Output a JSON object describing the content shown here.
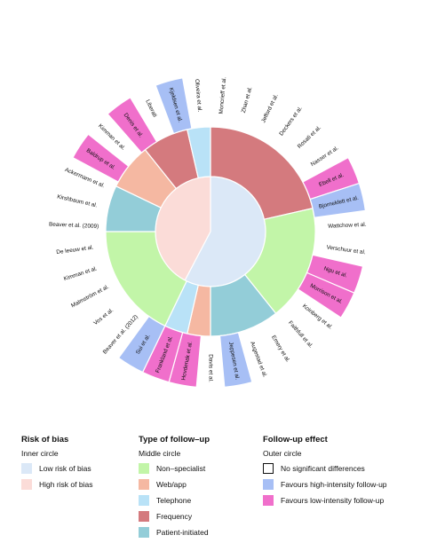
{
  "chart_data": {
    "type": "sunburst",
    "inner_ring": {
      "title": "Inner circle",
      "segments": [
        {
          "category": "low",
          "count": 15
        },
        {
          "category": "high",
          "count": 11
        }
      ]
    },
    "middle_ring": {
      "title": "Middle circle",
      "segments": [
        {
          "category": "frequency",
          "count": 6
        },
        {
          "category": "non_specialist",
          "count": 5
        },
        {
          "category": "patient_initiated",
          "count": 3
        },
        {
          "category": "web_app",
          "count": 1
        },
        {
          "category": "telephone",
          "count": 1
        },
        {
          "category": "non_specialist",
          "count": 5
        },
        {
          "category": "patient_initiated",
          "count": 2
        },
        {
          "category": "web_app",
          "count": 2
        },
        {
          "category": "frequency",
          "count": 2
        },
        {
          "category": "telephone",
          "count": 1
        }
      ]
    },
    "outer_ring": {
      "title": "Outer circle",
      "studies": [
        {
          "label": "Moncrieff et al.",
          "effect": "none"
        },
        {
          "label": "Zhan et al.",
          "effect": "none"
        },
        {
          "label": "Jefford et al.",
          "effect": "none"
        },
        {
          "label": "Deckers et al.",
          "effect": "none"
        },
        {
          "label": "Rosati et al.",
          "effect": "none"
        },
        {
          "label": "Nasser et al.",
          "effect": "none"
        },
        {
          "label": "Ebell et al.",
          "effect": "low"
        },
        {
          "label": "Bjorneklett et al.",
          "effect": "high"
        },
        {
          "label": "Wattchow et al.",
          "effect": "none"
        },
        {
          "label": "Verschuur et al.",
          "effect": "none"
        },
        {
          "label": "Ngu et al.",
          "effect": "low"
        },
        {
          "label": "Morrison et al.",
          "effect": "low"
        },
        {
          "label": "Koinberg et al.",
          "effect": "none"
        },
        {
          "label": "Faithfull et al.",
          "effect": "none"
        },
        {
          "label": "Emery et al.",
          "effect": "none"
        },
        {
          "label": "Augestad et al.",
          "effect": "none"
        },
        {
          "label": "Jeppesen et al.",
          "effect": "high"
        },
        {
          "label": "Davis et al.",
          "effect": "none"
        },
        {
          "label": "Hovdenak et al.",
          "effect": "low"
        },
        {
          "label": "Frankland et al.",
          "effect": "low"
        },
        {
          "label": "Sui et al.",
          "effect": "high"
        },
        {
          "label": "Beaver et al. (2012)",
          "effect": "none"
        },
        {
          "label": "Vos et al.",
          "effect": "none"
        },
        {
          "label": "Malmström et al.",
          "effect": "none"
        },
        {
          "label": "Kimman et al.",
          "effect": "none"
        },
        {
          "label": "De leeuw et al.",
          "effect": "none"
        },
        {
          "label": "Beaver et al. (2009)",
          "effect": "none"
        },
        {
          "label": "Kirshbaum et al.",
          "effect": "none"
        },
        {
          "label": "Ackermann et al.",
          "effect": "none"
        },
        {
          "label": "Baldrup et al.",
          "effect": "low"
        },
        {
          "label": "Kimman et al.",
          "effect": "none"
        },
        {
          "label": "Denis et al.",
          "effect": "low"
        },
        {
          "label": "Liberati",
          "effect": "none"
        },
        {
          "label": "Kjeldsen et al.",
          "effect": "high"
        },
        {
          "label": "Oliveira et al.",
          "effect": "none"
        }
      ],
      "weights": [
        2,
        2,
        2,
        2,
        2,
        2,
        2,
        2,
        2,
        2,
        2,
        2,
        2,
        2,
        2,
        2,
        2,
        2,
        2,
        2,
        2,
        2,
        2,
        2,
        2,
        2,
        2,
        2,
        2,
        2,
        2,
        2,
        2,
        2,
        2
      ]
    }
  },
  "colors": {
    "low": "#dbe8f7",
    "high": "#fbdcd8",
    "non_specialist": "#c2f5a8",
    "web_app": "#f5b8a2",
    "telephone": "#b9e2f7",
    "frequency": "#d47a7e",
    "patient_initiated": "#93cdd8",
    "none": "#ffffff",
    "high_intensity": "#a7bff5",
    "low_intensity": "#f06fcb"
  },
  "legend": {
    "bias": {
      "title": "Risk of bias",
      "subtitle": "Inner circle",
      "items": [
        "Low risk of bias",
        "High risk of bias"
      ]
    },
    "type": {
      "title": "Type of follow–up",
      "subtitle": "Middle circle",
      "items": [
        "Non–specialist",
        "Web/app",
        "Telephone",
        "Frequency",
        "Patient-initiated"
      ]
    },
    "effect": {
      "title": "Follow-up effect",
      "subtitle": "Outer circle",
      "items": [
        "No significant differences",
        "Favours high-intensity follow-up",
        "Favours low-intensity follow-up"
      ]
    }
  }
}
